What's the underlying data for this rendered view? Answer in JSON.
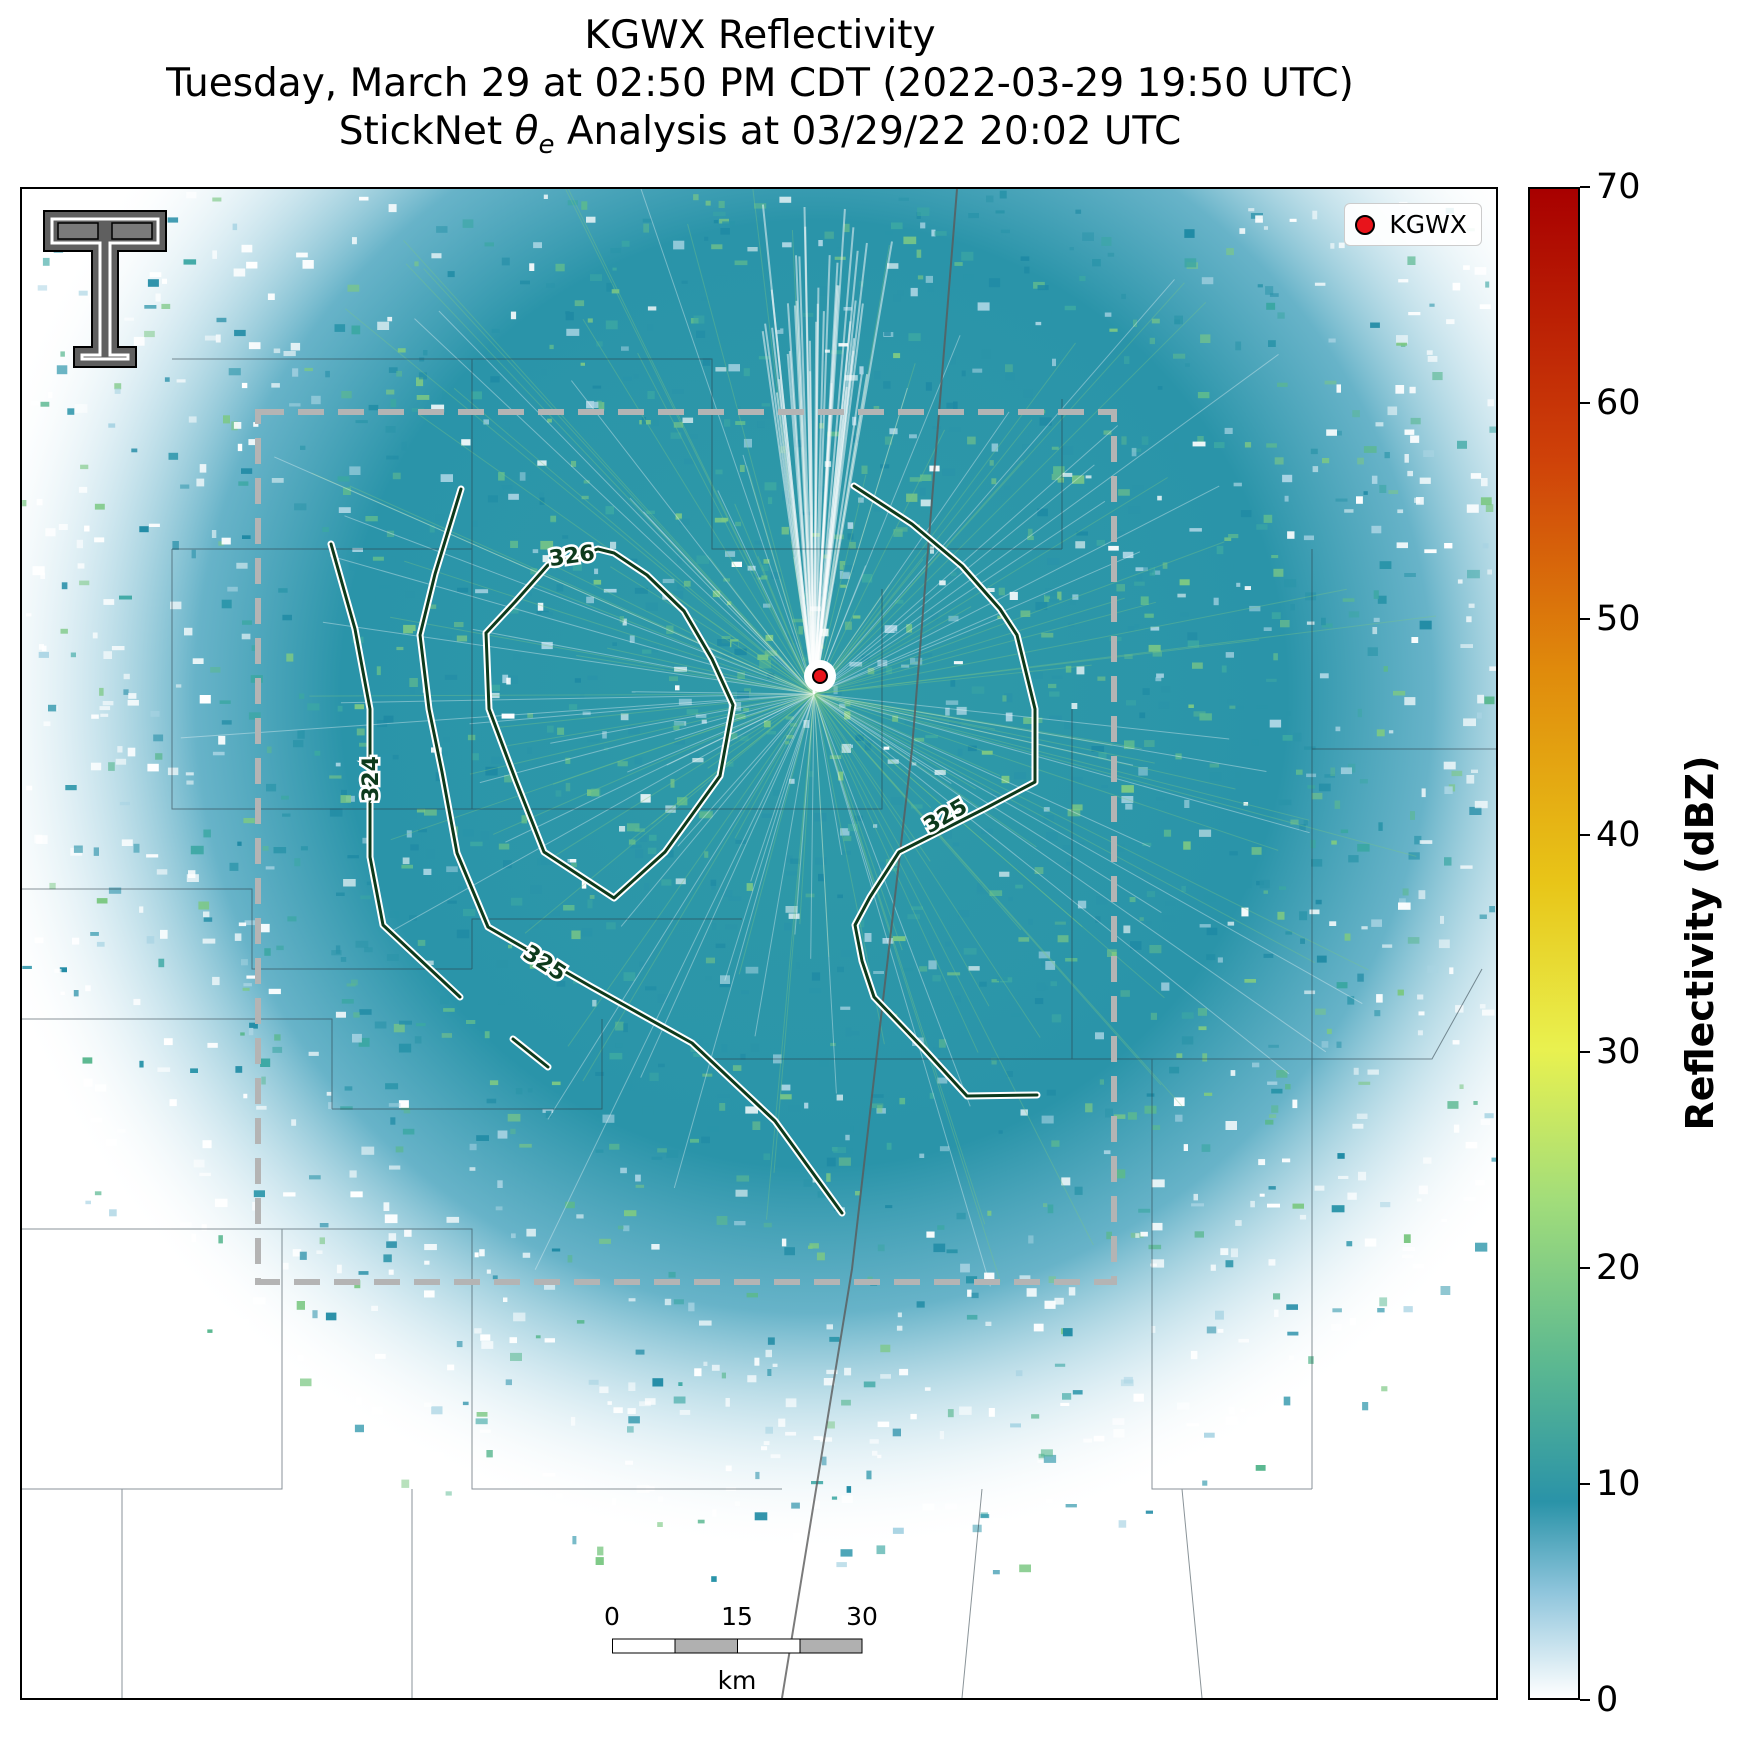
{
  "title": {
    "line1": "KGWX Reflectivity",
    "line2": "Tuesday, March 29 at 02:50 PM CDT (2022-03-29 19:50 UTC)",
    "line3_prefix": "StickNet ",
    "line3_symbol": "θ",
    "line3_sub": "e",
    "line3_suffix": " Analysis at 03/29/22 20:02 UTC"
  },
  "legend": {
    "label": "KGWX",
    "marker_color": "#e8141b"
  },
  "contours": [
    {
      "label": "324"
    },
    {
      "label": "325"
    },
    {
      "label": "326"
    },
    {
      "label": "325"
    }
  ],
  "scale_bar": {
    "ticks": [
      "0",
      "15",
      "30"
    ],
    "unit": "km"
  },
  "colorbar": {
    "label": "Reflectivity (dBZ)",
    "min": 0,
    "max": 70,
    "tick_labels": [
      "0",
      "10",
      "20",
      "30",
      "40",
      "50",
      "60",
      "70"
    ]
  },
  "colors": {
    "reflectivity_low": "#2a93a8",
    "contour": "#0d3a1c",
    "analysis_box": "#b4b4b4"
  }
}
